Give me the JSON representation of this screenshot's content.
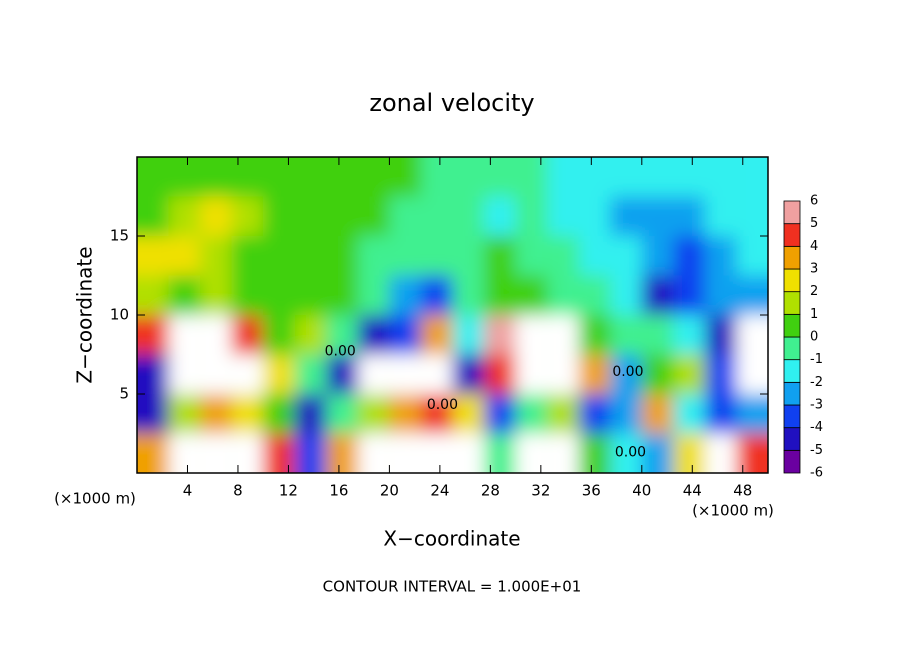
{
  "chart_data": {
    "type": "contour",
    "title": "zonal velocity",
    "x_label": "X−coordinate",
    "y_label": "Z−coordinate",
    "x_unit_label": "(×1000 m)",
    "y_unit_label": "(×1000 m)",
    "footer": "CONTOUR INTERVAL = 1.000E+01",
    "xlim": [
      0,
      50
    ],
    "ylim": [
      0,
      20
    ],
    "xticks": [
      4,
      8,
      12,
      16,
      20,
      24,
      28,
      32,
      36,
      40,
      44,
      48
    ],
    "yticks": [
      5,
      10,
      15
    ],
    "values": [
      [
        4,
        8,
        9,
        9,
        5,
        -3,
        4,
        8,
        9,
        9,
        7,
        0,
        8,
        8,
        1,
        -1,
        -2,
        3,
        7,
        5
      ],
      [
        -4,
        2,
        4,
        3,
        1,
        -4,
        0,
        2,
        4,
        5,
        3,
        -3,
        0,
        2,
        -3,
        -2,
        4,
        -1,
        -3,
        -2
      ],
      [
        -4,
        7,
        9,
        8,
        3,
        0,
        -4,
        8,
        9,
        8,
        -4,
        5,
        9,
        9,
        4,
        -2,
        1,
        2,
        -3,
        8
      ],
      [
        5,
        8,
        8,
        5,
        1,
        2,
        0,
        -4,
        -3,
        4,
        -1,
        6,
        8,
        7,
        1,
        0,
        0,
        -1,
        -4,
        7
      ],
      [
        2,
        1,
        2,
        1,
        1,
        1,
        1,
        0,
        -2,
        -3,
        0,
        1,
        1,
        0,
        0,
        -1,
        -4,
        -3,
        -2,
        -2
      ],
      [
        3,
        3,
        2,
        1,
        1,
        1,
        1,
        0,
        0,
        0,
        0,
        1,
        0,
        0,
        -1,
        -1,
        -2,
        -3,
        -2,
        -1
      ],
      [
        1,
        2,
        3,
        2,
        1,
        1,
        1,
        1,
        0,
        0,
        0,
        -1,
        0,
        -1,
        -1,
        -2,
        -2,
        -2,
        -1,
        -1
      ],
      [
        1,
        1,
        1,
        1,
        1,
        1,
        1,
        1,
        1,
        0,
        0,
        0,
        0,
        -1,
        -1,
        -1,
        -1,
        -1,
        -1,
        -1
      ]
    ],
    "colorbar_levels": [
      -6,
      -5,
      -4,
      -3,
      -2,
      -1,
      0,
      1,
      2,
      3,
      4,
      5,
      6
    ],
    "colorbar_colors": [
      "#6a00a0",
      "#2010c0",
      "#1040f0",
      "#10a0f0",
      "#30f0f0",
      "#40f090",
      "#40d010",
      "#b0e000",
      "#f0e000",
      "#f0a000",
      "#f03020",
      "#f0a0a0"
    ],
    "contour_labels": [
      {
        "text": "0.00",
        "x": 16.1,
        "y": 7.7
      },
      {
        "text": "0.00",
        "x": 24.2,
        "y": 4.3
      },
      {
        "text": "0.00",
        "x": 38.9,
        "y": 6.4
      },
      {
        "text": "0.00",
        "x": 39.1,
        "y": 1.3
      }
    ]
  }
}
